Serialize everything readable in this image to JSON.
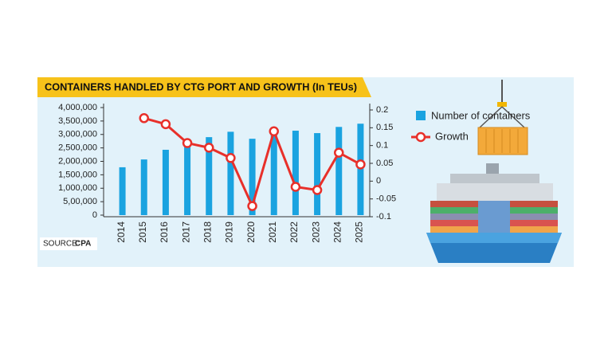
{
  "chart_data": {
    "type": "bar",
    "title": "CONTAINERS HANDLED BY CTG PORT AND GROWTH (In TEUs)",
    "categories": [
      "2014",
      "2015",
      "2016",
      "2017",
      "2018",
      "2019",
      "2020",
      "2021",
      "2022",
      "2023",
      "2024",
      "2025"
    ],
    "series": [
      {
        "name": "Number of containers",
        "type": "bar",
        "color": "#1aa3e0",
        "values": [
          1780000,
          2070000,
          2430000,
          2730000,
          2900000,
          3100000,
          2840000,
          3020000,
          3140000,
          3050000,
          3280000,
          3400000
        ]
      },
      {
        "name": "Growth",
        "type": "line",
        "axis": "y2",
        "color": "#e8302a",
        "values": [
          null,
          0.177,
          0.16,
          0.107,
          0.094,
          0.065,
          -0.07,
          0.14,
          -0.016,
          -0.025,
          0.08,
          0.047
        ]
      }
    ],
    "ylim": [
      0,
      4000000
    ],
    "yticks": [
      0,
      {
        "value": 500000,
        "label": "5,00,000"
      },
      {
        "value": 1000000,
        "label": "1,000,000"
      },
      {
        "value": 1500000,
        "label": "1,500,000"
      },
      {
        "value": 2000000,
        "label": "2,000,000"
      },
      {
        "value": 2500000,
        "label": "2,500,000"
      },
      {
        "value": 3000000,
        "label": "3,000,000"
      },
      {
        "value": 3500000,
        "label": "3,500,000"
      },
      {
        "value": 4000000,
        "label": "4,000,000"
      }
    ],
    "y2lim": [
      -0.1,
      0.2
    ],
    "y2ticks": [
      -0.1,
      -0.05,
      0,
      0.05,
      0.1,
      0.15,
      0.2
    ],
    "source_label": "SOURCE:",
    "source": "CPA"
  }
}
